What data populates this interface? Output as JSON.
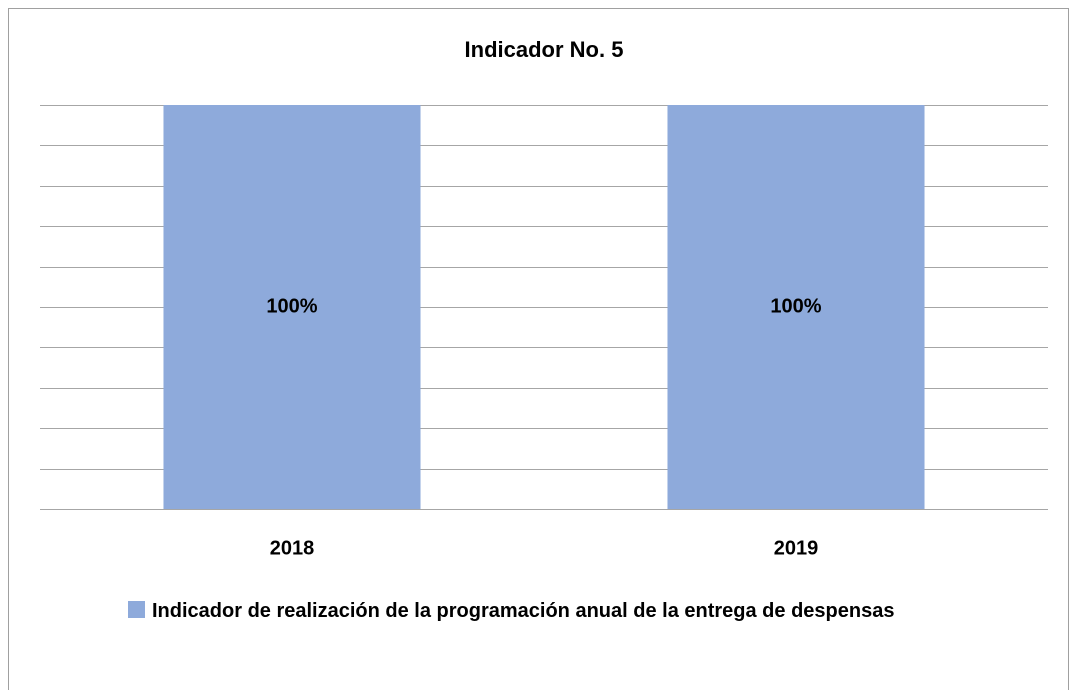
{
  "chart_data": {
    "type": "bar",
    "title": "Indicador No. 5",
    "categories": [
      "2018",
      "2019"
    ],
    "series": [
      {
        "name": "Indicador de realización de la programación anual de la entrega de despensas",
        "color": "#8eaadb",
        "values": [
          100,
          100
        ],
        "value_labels": [
          "100%",
          "100%"
        ]
      }
    ],
    "ylim": [
      0,
      100
    ],
    "yticks": [
      0,
      10,
      20,
      30,
      40,
      50,
      60,
      70,
      80,
      90,
      100
    ],
    "grid": true,
    "legend": "bottom"
  }
}
